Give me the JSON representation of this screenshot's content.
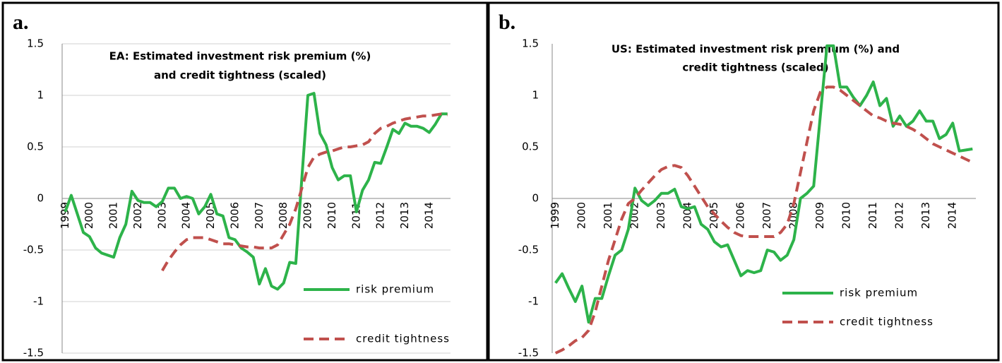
{
  "chart_data": [
    {
      "type": "line",
      "panel_label": "a.",
      "title": [
        "EA: Estimated investment risk premium (%)",
        "and credit tightness (scaled)"
      ],
      "categories": [
        "1999",
        null,
        null,
        null,
        "2000",
        null,
        null,
        null,
        "2001",
        null,
        null,
        null,
        "2002",
        null,
        null,
        null,
        "2003",
        null,
        null,
        null,
        "2004",
        null,
        null,
        null,
        "2005",
        null,
        null,
        null,
        "2006",
        null,
        null,
        null,
        "2007",
        null,
        null,
        null,
        "2008",
        null,
        null,
        null,
        "2009",
        null,
        null,
        null,
        "2010",
        null,
        null,
        null,
        "2011",
        null,
        null,
        null,
        "2012",
        null,
        null,
        null,
        "2013",
        null,
        null,
        null,
        "2014",
        null,
        null,
        null
      ],
      "ylim": [
        -1.5,
        1.5
      ],
      "yticks": [
        1.5,
        1,
        0.5,
        0,
        -0.5,
        -1,
        -1.5
      ],
      "grid": true,
      "series": [
        {
          "name": "risk premium",
          "color": "#2db34a",
          "dash": false,
          "values": [
            -0.13,
            0.03,
            -0.15,
            -0.33,
            -0.37,
            -0.48,
            -0.53,
            -0.55,
            -0.57,
            -0.38,
            -0.25,
            0.07,
            -0.02,
            -0.04,
            -0.04,
            -0.08,
            -0.03,
            0.1,
            0.1,
            0.0,
            0.02,
            0.0,
            -0.15,
            -0.08,
            0.04,
            -0.15,
            -0.17,
            -0.38,
            -0.4,
            -0.48,
            -0.52,
            -0.57,
            -0.83,
            -0.68,
            -0.85,
            -0.88,
            -0.82,
            -0.62,
            -0.63,
            0.2,
            1.0,
            1.02,
            0.63,
            0.52,
            0.3,
            0.18,
            0.22,
            0.22,
            -0.13,
            0.08,
            0.18,
            0.35,
            0.34,
            0.5,
            0.67,
            0.63,
            0.73,
            0.7,
            0.7,
            0.68,
            0.64,
            0.72,
            0.82,
            0.82
          ]
        },
        {
          "name": "credit tightness",
          "color": "#c0504d",
          "dash": true,
          "values": [
            null,
            null,
            null,
            null,
            null,
            null,
            null,
            null,
            null,
            null,
            null,
            null,
            null,
            null,
            null,
            null,
            -0.7,
            -0.6,
            -0.52,
            -0.45,
            -0.4,
            -0.38,
            -0.38,
            -0.38,
            -0.4,
            -0.42,
            -0.44,
            -0.44,
            -0.45,
            -0.46,
            -0.47,
            -0.47,
            -0.48,
            -0.48,
            -0.48,
            -0.45,
            -0.35,
            -0.25,
            -0.1,
            0.1,
            0.3,
            0.4,
            0.43,
            0.45,
            0.46,
            0.48,
            0.5,
            0.5,
            0.51,
            0.52,
            0.55,
            0.63,
            0.68,
            0.7,
            0.73,
            0.75,
            0.77,
            0.78,
            0.79,
            0.8,
            0.8,
            0.81,
            0.82,
            0.81
          ]
        }
      ]
    },
    {
      "type": "line",
      "panel_label": "b.",
      "title": [
        "US: Estimated investment risk premium (%) and",
        "credit tightness (scaled)"
      ],
      "categories": [
        "1999",
        null,
        null,
        null,
        "2000",
        null,
        null,
        null,
        "2001",
        null,
        null,
        null,
        "2002",
        null,
        null,
        null,
        "2003",
        null,
        null,
        null,
        "2004",
        null,
        null,
        null,
        "2005",
        null,
        null,
        null,
        "2006",
        null,
        null,
        null,
        "2007",
        null,
        null,
        null,
        "2008",
        null,
        null,
        null,
        "2009",
        null,
        null,
        null,
        "2010",
        null,
        null,
        null,
        "2011",
        null,
        null,
        null,
        "2012",
        null,
        null,
        null,
        "2013",
        null,
        null,
        null,
        "2014",
        null,
        null,
        null
      ],
      "ylim": [
        -1.5,
        1.5
      ],
      "yticks": [
        1.5,
        1,
        0.5,
        0,
        -0.5,
        -1,
        -1.5
      ],
      "grid": false,
      "series": [
        {
          "name": "risk premium",
          "color": "#2db34a",
          "dash": false,
          "values": [
            -0.82,
            -0.73,
            -0.87,
            -1.0,
            -0.85,
            -1.2,
            -0.97,
            -0.97,
            -0.75,
            -0.55,
            -0.5,
            -0.3,
            0.1,
            -0.02,
            -0.07,
            -0.02,
            0.05,
            0.05,
            0.09,
            -0.08,
            -0.1,
            -0.08,
            -0.25,
            -0.3,
            -0.42,
            -0.47,
            -0.45,
            -0.6,
            -0.75,
            -0.7,
            -0.72,
            -0.7,
            -0.5,
            -0.52,
            -0.6,
            -0.55,
            -0.4,
            0.0,
            0.05,
            0.12,
            0.8,
            1.48,
            1.48,
            1.08,
            1.08,
            0.98,
            0.9,
            1.0,
            1.13,
            0.9,
            0.97,
            0.7,
            0.8,
            0.7,
            0.75,
            0.85,
            0.75,
            0.75,
            0.58,
            0.62,
            0.73,
            0.46,
            0.47,
            0.48
          ]
        },
        {
          "name": "credit tightness",
          "color": "#c0504d",
          "dash": true,
          "values": [
            -1.5,
            -1.47,
            -1.43,
            -1.38,
            -1.35,
            -1.28,
            -1.1,
            -0.85,
            -0.6,
            -0.4,
            -0.2,
            -0.05,
            0.0,
            0.08,
            0.15,
            0.22,
            0.28,
            0.31,
            0.32,
            0.3,
            0.22,
            0.12,
            0.02,
            -0.08,
            -0.15,
            -0.22,
            -0.28,
            -0.33,
            -0.36,
            -0.37,
            -0.37,
            -0.37,
            -0.37,
            -0.37,
            -0.33,
            -0.25,
            -0.05,
            0.25,
            0.55,
            0.85,
            1.03,
            1.08,
            1.08,
            1.05,
            1.0,
            0.95,
            0.9,
            0.85,
            0.8,
            0.78,
            0.75,
            0.73,
            0.72,
            0.7,
            0.67,
            0.63,
            0.58,
            0.53,
            0.5,
            0.47,
            0.44,
            0.41,
            0.38,
            0.35
          ]
        }
      ]
    }
  ]
}
